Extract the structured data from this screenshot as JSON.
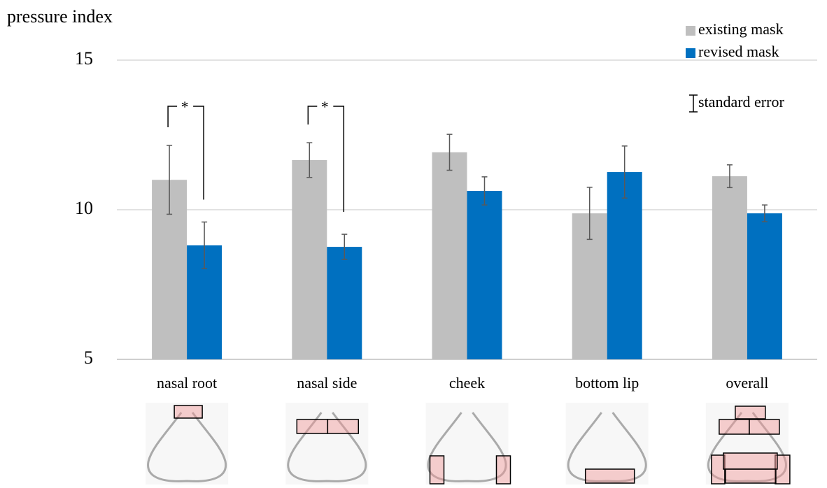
{
  "chart_data": {
    "type": "bar",
    "y_label": "pressure index",
    "categories": [
      "nasal root",
      "nasal side",
      "cheek",
      "bottom lip",
      "overall"
    ],
    "series": [
      {
        "name": "existing mask",
        "color": "#bfbfbf",
        "values": [
          11.0,
          11.66,
          11.92,
          9.88,
          11.12
        ],
        "errors": [
          1.15,
          0.58,
          0.6,
          0.87,
          0.38
        ]
      },
      {
        "name": "revised mask",
        "color": "#0070c0",
        "values": [
          8.81,
          8.76,
          10.63,
          11.26,
          9.88
        ],
        "errors": [
          0.78,
          0.42,
          0.47,
          0.87,
          0.28
        ]
      }
    ],
    "error_label": "standard error",
    "significance": [
      {
        "text": "*",
        "category": "nasal root"
      },
      {
        "text": "*",
        "category": "nasal side"
      }
    ],
    "ylim": [
      5,
      15
    ],
    "yticks": [
      5,
      10,
      15
    ],
    "grid": true
  }
}
